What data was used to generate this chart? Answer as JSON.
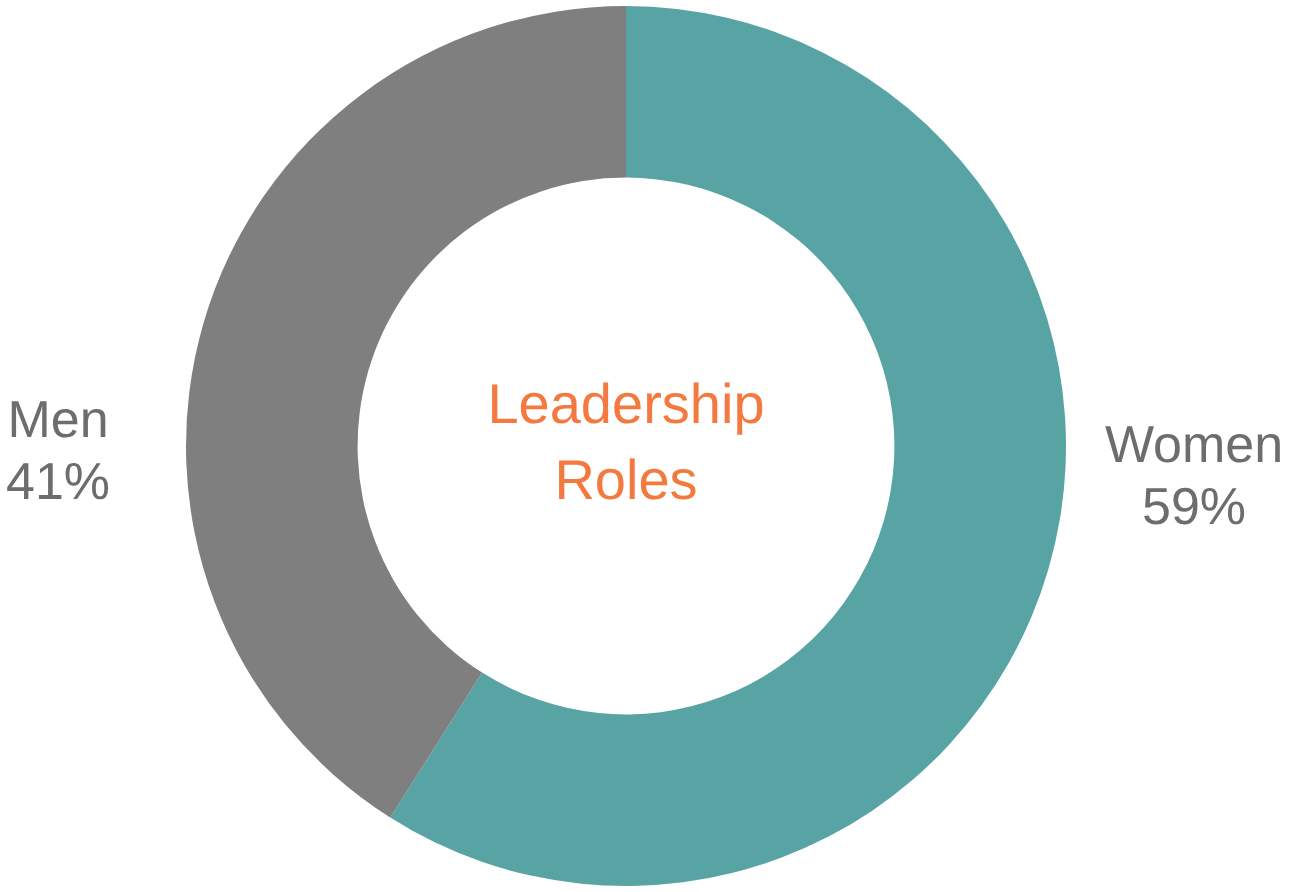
{
  "chart_data": {
    "type": "donut",
    "title": "Leadership Roles",
    "categories": [
      "Women",
      "Men"
    ],
    "values": [
      59,
      41
    ],
    "value_labels": [
      "59%",
      "41%"
    ],
    "colors": [
      "#58a4a4",
      "#7f7f7f"
    ],
    "legend": false
  }
}
